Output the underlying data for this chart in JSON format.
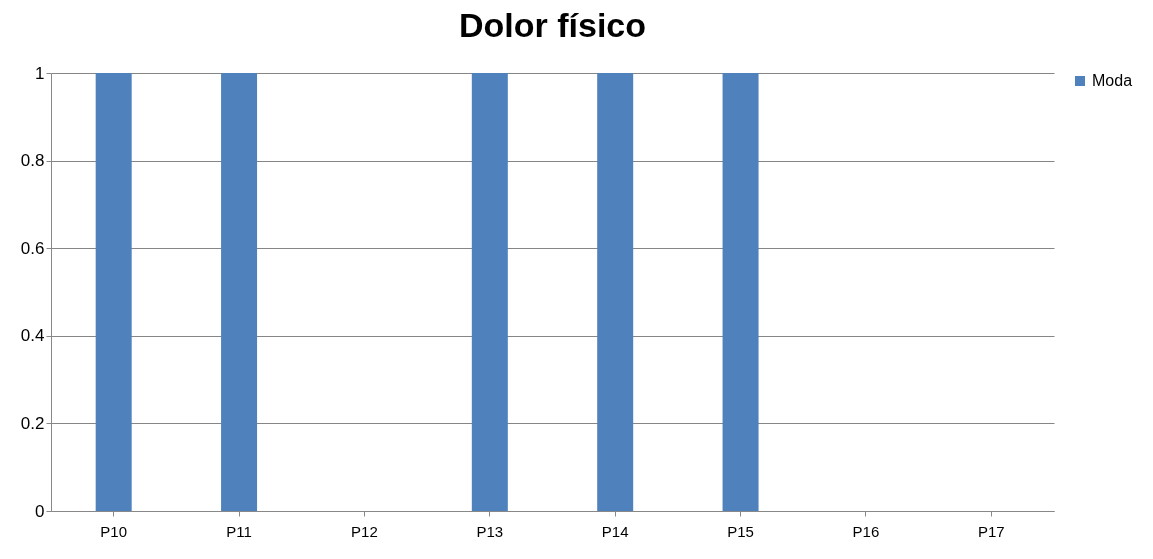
{
  "chart_data": {
    "type": "bar",
    "title": "Dolor físico",
    "categories": [
      "P10",
      "P11",
      "P12",
      "P13",
      "P14",
      "P15",
      "P16",
      "P17"
    ],
    "series": [
      {
        "name": "Moda",
        "color": "#4f81bd",
        "values": [
          1,
          1,
          0,
          1,
          1,
          1,
          0,
          0
        ]
      }
    ],
    "ylim": [
      0,
      1
    ],
    "yticks": [
      0,
      0.2,
      0.4,
      0.6,
      0.8,
      1
    ],
    "grid": "y",
    "legend": "right"
  }
}
